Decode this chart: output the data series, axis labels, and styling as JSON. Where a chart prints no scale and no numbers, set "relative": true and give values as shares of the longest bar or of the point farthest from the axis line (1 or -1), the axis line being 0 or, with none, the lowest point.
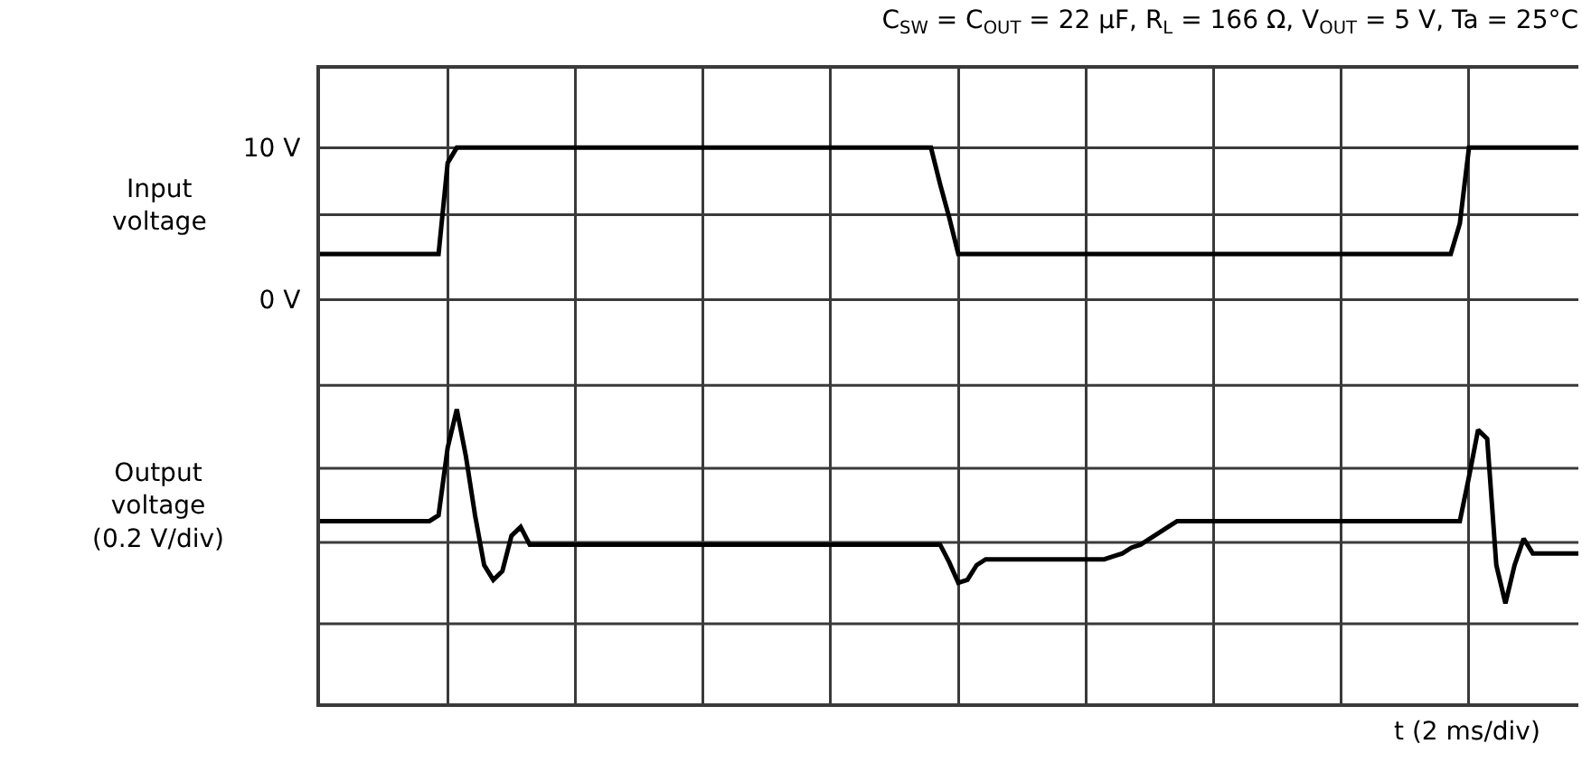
{
  "chart_data": [
    {
      "type": "line",
      "title": "C$_{SW}$ = C$_{OUT}$ = 22 μF, R$_{L}$ = 166 Ω, V$_{OUT}$ = 5 V, Ta = 25°C",
      "ylabel": "Input\nvoltage",
      "categories": [
        null,
        null,
        null,
        null,
        null,
        null,
        null,
        null,
        null,
        null,
        null,
        null,
        null,
        null,
        null,
        null,
        null,
        null,
        null,
        null,
        null,
        null,
        null,
        null,
        null,
        null,
        null,
        null,
        null,
        null,
        null,
        null,
        null,
        null,
        null,
        null,
        null,
        null,
        null,
        null,
        null,
        null,
        null,
        null,
        null,
        null,
        null,
        null,
        null,
        null,
        null,
        null,
        null,
        null,
        null,
        null,
        null,
        null,
        null,
        null,
        null,
        null,
        null,
        null,
        null,
        null,
        null,
        null,
        null,
        null,
        null,
        null,
        null,
        null,
        null,
        null,
        null,
        null,
        null,
        null,
        null,
        null,
        null,
        null,
        null,
        null,
        null,
        null,
        null,
        null,
        null,
        null,
        null,
        null,
        null,
        null,
        null,
        null,
        null,
        null,
        null,
        null,
        null,
        null,
        null,
        null,
        null,
        null,
        null,
        null,
        null,
        null,
        null,
        null,
        null,
        null,
        null,
        null,
        null,
        null,
        null,
        null,
        null,
        null,
        null,
        null,
        null,
        null,
        null,
        null,
        null,
        null,
        null,
        null,
        null,
        null,
        null,
        null,
        null
      ],
      "values": [
        3,
        3,
        3,
        3,
        3,
        3,
        3,
        3,
        3,
        3,
        3,
        3,
        3,
        3,
        9,
        10,
        10,
        10,
        10,
        10,
        10,
        10,
        10,
        10,
        10,
        10,
        10,
        10,
        10,
        10,
        10,
        10,
        10,
        10,
        10,
        10,
        10,
        10,
        10,
        10,
        10,
        10,
        10,
        10,
        10,
        10,
        10,
        10,
        10,
        10,
        10,
        10,
        10,
        10,
        10,
        10,
        10,
        10,
        10,
        10,
        10,
        10,
        10,
        10,
        10,
        10,
        10,
        10,
        7.6,
        5.4,
        3,
        3,
        3,
        3,
        3,
        3,
        3,
        3,
        3,
        3,
        3,
        3,
        3,
        3,
        3,
        3,
        3,
        3,
        3,
        3,
        3,
        3,
        3,
        3,
        3,
        3,
        3,
        3,
        3,
        3,
        3,
        3,
        3,
        3,
        3,
        3,
        3,
        3,
        3,
        3,
        3,
        3,
        3,
        3,
        3,
        3,
        3,
        3,
        3,
        3,
        3,
        3,
        3,
        3,
        3,
        5,
        10,
        10,
        10,
        10,
        10,
        10,
        10,
        10,
        10,
        10,
        10,
        10,
        10
      ],
      "color": "#000000",
      "ylim": [
        -2.9,
        15.2
      ],
      "yticks": [
        {
          "value": 0,
          "label": "0 V"
        },
        {
          "value": 5.6,
          "label": null
        },
        {
          "value": 10,
          "label": "10 V"
        }
      ],
      "grid": true
    },
    {
      "type": "line",
      "ylabel": "Output\nvoltage\n(0.2 V/div)",
      "xlabel": "t (2 ms/div)",
      "relative": true,
      "categories": [
        null,
        null,
        null,
        null,
        null,
        null,
        null,
        null,
        null,
        null,
        null,
        null,
        null,
        null,
        null,
        null,
        null,
        null,
        null,
        null,
        null,
        null,
        null,
        null,
        null,
        null,
        null,
        null,
        null,
        null,
        null,
        null,
        null,
        null,
        null,
        null,
        null,
        null,
        null,
        null,
        null,
        null,
        null,
        null,
        null,
        null,
        null,
        null,
        null,
        null,
        null,
        null,
        null,
        null,
        null,
        null,
        null,
        null,
        null,
        null,
        null,
        null,
        null,
        null,
        null,
        null,
        null,
        null,
        null,
        null,
        null,
        null,
        null,
        null,
        null,
        null,
        null,
        null,
        null,
        null,
        null,
        null,
        null,
        null,
        null,
        null,
        null,
        null,
        null,
        null,
        null,
        null,
        null,
        null,
        null,
        null,
        null,
        null,
        null,
        null,
        null,
        null,
        null,
        null,
        null,
        null,
        null,
        null,
        null,
        null,
        null,
        null,
        null,
        null,
        null,
        null,
        null,
        null,
        null,
        null,
        null,
        null,
        null,
        null,
        null,
        null,
        null,
        null,
        null,
        null,
        null,
        null,
        null,
        null,
        null,
        null,
        null,
        null,
        null
      ],
      "values": [
        0.62,
        0.62,
        0.62,
        0.62,
        0.62,
        0.62,
        0.62,
        0.62,
        0.62,
        0.62,
        0.62,
        0.62,
        0.62,
        0.64,
        0.87,
        1,
        0.84,
        0.64,
        0.47,
        0.42,
        0.45,
        0.57,
        0.6,
        0.54,
        0.54,
        0.54,
        0.54,
        0.54,
        0.54,
        0.54,
        0.54,
        0.54,
        0.54,
        0.54,
        0.54,
        0.54,
        0.54,
        0.54,
        0.54,
        0.54,
        0.54,
        0.54,
        0.54,
        0.54,
        0.54,
        0.54,
        0.54,
        0.54,
        0.54,
        0.54,
        0.54,
        0.54,
        0.54,
        0.54,
        0.54,
        0.54,
        0.54,
        0.54,
        0.54,
        0.54,
        0.54,
        0.54,
        0.54,
        0.54,
        0.54,
        0.54,
        0.54,
        0.54,
        0.54,
        0.48,
        0.41,
        0.42,
        0.47,
        0.49,
        0.49,
        0.49,
        0.49,
        0.49,
        0.49,
        0.49,
        0.49,
        0.49,
        0.49,
        0.49,
        0.49,
        0.49,
        0.49,
        0.5,
        0.51,
        0.53,
        0.54,
        0.56,
        0.58,
        0.6,
        0.62,
        0.62,
        0.62,
        0.62,
        0.62,
        0.62,
        0.62,
        0.62,
        0.62,
        0.62,
        0.62,
        0.62,
        0.62,
        0.62,
        0.62,
        0.62,
        0.62,
        0.62,
        0.62,
        0.62,
        0.62,
        0.62,
        0.62,
        0.62,
        0.62,
        0.62,
        0.62,
        0.62,
        0.62,
        0.62,
        0.62,
        0.62,
        0.77,
        0.93,
        0.9,
        0.47,
        0.34,
        0.47,
        0.56,
        0.51,
        0.51,
        0.51,
        0.51,
        0.51,
        0.51
      ],
      "color": "#000000",
      "grid": true
    }
  ]
}
